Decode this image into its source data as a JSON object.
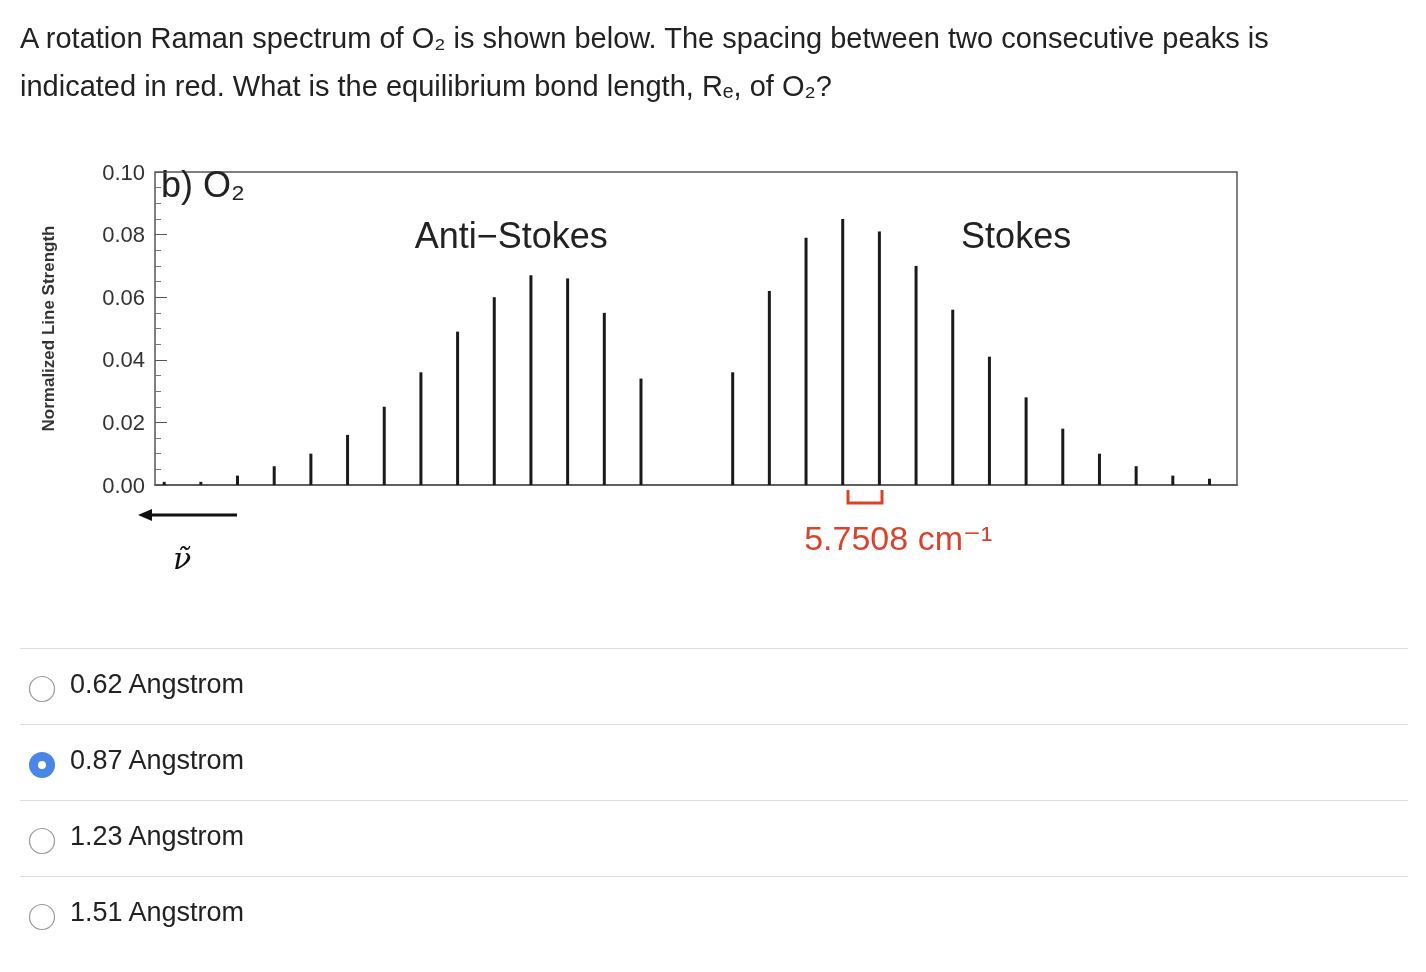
{
  "chart_data": {
    "type": "bar",
    "title": "A rotation Raman spectrum of O₂ is shown below. The spacing between two consecutive peaks is indicated in red. What is the equilibrium bond length, Rₑ, of O₂?",
    "xlabel": "ν̃",
    "ylabel": "Normalized Line Strength",
    "annotations": [
      "b) O₂",
      "Anti−Stokes",
      "Stokes",
      "5.7508 cm⁻¹",
      "0.62 Angstrom",
      "0.87 Angstrom",
      "1.23 Angstrom",
      "1.51 Angstrom"
    ],
    "categories": [
      null,
      null,
      null,
      null,
      null,
      null,
      null,
      null,
      null,
      null,
      null,
      null,
      null,
      null,
      null,
      null,
      null,
      null,
      null,
      null,
      null,
      null,
      null,
      null,
      null,
      null,
      null,
      null,
      null,
      null,
      null,
      null,
      null,
      null,
      null,
      null,
      null,
      null,
      null,
      null,
      null,
      null,
      null,
      null,
      null,
      null,
      null,
      null,
      null,
      null,
      null,
      null,
      null,
      null,
      null,
      null,
      null,
      null,
      null
    ],
    "values": [
      0.001,
      null,
      0.001,
      null,
      0.003,
      null,
      0.006,
      null,
      0.01,
      null,
      0.016,
      null,
      0.025,
      null,
      0.036,
      null,
      0.049,
      null,
      0.06,
      null,
      0.067,
      null,
      0.066,
      null,
      0.055,
      null,
      0.034,
      null,
      null,
      null,
      null,
      0.036,
      null,
      0.062,
      null,
      0.079,
      null,
      0.085,
      null,
      0.081,
      null,
      0.07,
      null,
      0.056,
      null,
      0.041,
      null,
      0.028,
      null,
      0.018,
      null,
      0.01,
      null,
      0.006,
      null,
      0.003,
      null,
      0.002,
      null
    ],
    "color": "#1a1a1a",
    "ylim": [
      0,
      0.1
    ],
    "yticks": [
      {
        "value": 0,
        "label": "0.00"
      },
      {
        "value": 0.02,
        "label": "0.02"
      },
      {
        "value": 0.04,
        "label": "0.04"
      },
      {
        "value": 0.06,
        "label": "0.06"
      },
      {
        "value": 0.08,
        "label": "0.08"
      },
      {
        "value": 0.1,
        "label": "0.10"
      }
    ]
  }
}
